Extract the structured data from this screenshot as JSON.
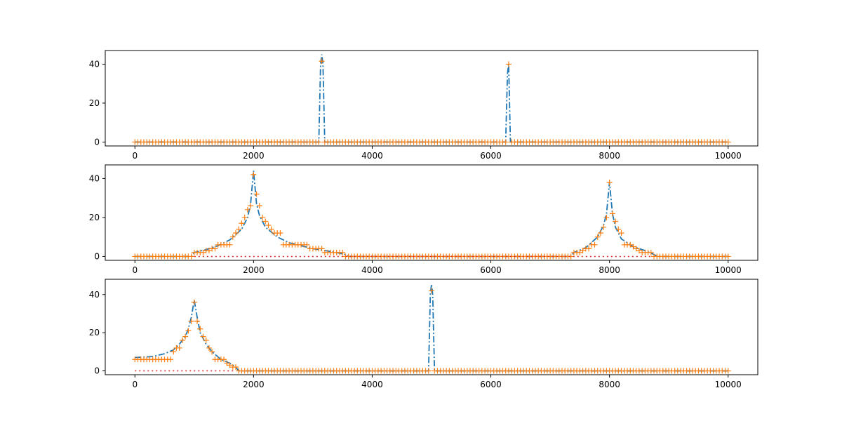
{
  "figure": {
    "background": "#ffffff"
  },
  "chart_data": [
    {
      "type": "line",
      "title": "",
      "xlabel": "",
      "ylabel": "",
      "xlim": [
        -500,
        10500
      ],
      "ylim": [
        -2,
        47
      ],
      "xticks": [
        0,
        2000,
        4000,
        6000,
        8000,
        10000
      ],
      "xtick_labels": [
        "0",
        "2000",
        "4000",
        "6000",
        "8000",
        "10000"
      ],
      "yticks": [
        0,
        20,
        40
      ],
      "ytick_labels": [
        "0",
        "20",
        "40"
      ],
      "grid": false,
      "series": [
        {
          "style": "dashdot",
          "color": "#1f77b4",
          "x": [
            0,
            3100,
            3130,
            3150,
            3170,
            3200,
            6250,
            6280,
            6300,
            6330,
            10000
          ],
          "y": [
            0,
            0,
            40,
            45,
            40,
            0,
            0,
            35,
            40,
            0,
            0
          ]
        },
        {
          "style": "markers-plus",
          "color": "#ff7f0e",
          "x_start": 0,
          "x_end": 10000,
          "x_step": 50,
          "default_y": 0,
          "overrides": [
            [
              3150,
              41.5
            ],
            [
              6300,
              40
            ]
          ]
        }
      ]
    },
    {
      "type": "line",
      "title": "",
      "xlabel": "",
      "ylabel": "",
      "xlim": [
        -500,
        10500
      ],
      "ylim": [
        -2,
        47
      ],
      "xticks": [
        0,
        2000,
        4000,
        6000,
        8000,
        10000
      ],
      "xtick_labels": [
        "0",
        "2000",
        "4000",
        "6000",
        "8000",
        "10000"
      ],
      "yticks": [
        0,
        20,
        40
      ],
      "ytick_labels": [
        "0",
        "20",
        "40"
      ],
      "grid": false,
      "series": [
        {
          "style": "dashdot",
          "color": "#1f77b4",
          "x": [
            0,
            950,
            1000,
            1200,
            1400,
            1600,
            1800,
            1900,
            1950,
            2000,
            2050,
            2100,
            2200,
            2400,
            2600,
            2800,
            3000,
            3200,
            3400,
            3550,
            3600,
            7350,
            7400,
            7600,
            7800,
            7900,
            7950,
            8000,
            8050,
            8100,
            8200,
            8400,
            8600,
            8750,
            8800,
            10000
          ],
          "y": [
            0,
            0,
            2,
            3.5,
            5.5,
            8.5,
            14,
            20,
            27,
            44,
            27,
            21,
            15,
            10,
            7,
            5.5,
            4,
            3,
            2,
            1,
            0,
            0,
            2,
            4.5,
            10,
            16,
            22,
            38,
            22,
            15,
            9,
            5,
            3,
            1,
            0,
            0
          ]
        },
        {
          "style": "markers-plus",
          "color": "#ff7f0e",
          "x_start": 0,
          "x_end": 10000,
          "x_step": 50,
          "default_y": 0,
          "overrides": [
            [
              1000,
              2
            ],
            [
              1050,
              2
            ],
            [
              1100,
              2
            ],
            [
              1150,
              2
            ],
            [
              1200,
              3
            ],
            [
              1250,
              3
            ],
            [
              1300,
              4
            ],
            [
              1350,
              4
            ],
            [
              1400,
              6
            ],
            [
              1450,
              6
            ],
            [
              1500,
              6
            ],
            [
              1550,
              6
            ],
            [
              1600,
              6
            ],
            [
              1650,
              10
            ],
            [
              1700,
              12
            ],
            [
              1750,
              14
            ],
            [
              1800,
              17
            ],
            [
              1850,
              20
            ],
            [
              1900,
              24
            ],
            [
              1950,
              26
            ],
            [
              2000,
              42
            ],
            [
              2050,
              32
            ],
            [
              2100,
              26
            ],
            [
              2150,
              20
            ],
            [
              2200,
              18
            ],
            [
              2250,
              16
            ],
            [
              2300,
              14
            ],
            [
              2350,
              12
            ],
            [
              2400,
              12
            ],
            [
              2450,
              12
            ],
            [
              2500,
              6
            ],
            [
              2550,
              6
            ],
            [
              2600,
              6
            ],
            [
              2650,
              6
            ],
            [
              2700,
              6
            ],
            [
              2750,
              6
            ],
            [
              2800,
              6
            ],
            [
              2850,
              6
            ],
            [
              2900,
              6
            ],
            [
              2950,
              4
            ],
            [
              3000,
              4
            ],
            [
              3050,
              4
            ],
            [
              3100,
              4
            ],
            [
              3150,
              4
            ],
            [
              3200,
              2
            ],
            [
              3250,
              2
            ],
            [
              3300,
              2
            ],
            [
              3350,
              2
            ],
            [
              3400,
              2
            ],
            [
              3450,
              2
            ],
            [
              3500,
              2
            ],
            [
              7400,
              2
            ],
            [
              7450,
              2
            ],
            [
              7500,
              2
            ],
            [
              7550,
              3
            ],
            [
              7600,
              4
            ],
            [
              7650,
              4
            ],
            [
              7700,
              6
            ],
            [
              7750,
              6
            ],
            [
              7800,
              10
            ],
            [
              7850,
              12
            ],
            [
              7900,
              15
            ],
            [
              7950,
              20
            ],
            [
              8000,
              38
            ],
            [
              8050,
              22
            ],
            [
              8100,
              18
            ],
            [
              8150,
              14
            ],
            [
              8200,
              12
            ],
            [
              8250,
              6
            ],
            [
              8300,
              6
            ],
            [
              8350,
              6
            ],
            [
              8400,
              5
            ],
            [
              8450,
              4
            ],
            [
              8500,
              3
            ],
            [
              8550,
              2
            ],
            [
              8600,
              2
            ],
            [
              8650,
              2
            ],
            [
              8700,
              2
            ]
          ]
        },
        {
          "style": "dotted",
          "color": "#d62728",
          "x": [
            1000,
            8700
          ],
          "y": [
            0,
            0
          ]
        }
      ]
    },
    {
      "type": "line",
      "title": "",
      "xlabel": "",
      "ylabel": "",
      "xlim": [
        -500,
        10500
      ],
      "ylim": [
        -2,
        48
      ],
      "xticks": [
        0,
        2000,
        4000,
        6000,
        8000,
        10000
      ],
      "xtick_labels": [
        "0",
        "2000",
        "4000",
        "6000",
        "8000",
        "10000"
      ],
      "yticks": [
        0,
        20,
        40
      ],
      "ytick_labels": [
        "0",
        "20",
        "40"
      ],
      "grid": false,
      "series": [
        {
          "style": "dashdot",
          "color": "#1f77b4",
          "x": [
            0,
            300,
            500,
            650,
            750,
            850,
            900,
            950,
            1000,
            1050,
            1100,
            1200,
            1300,
            1450,
            1600,
            1700,
            1750,
            4950,
            4980,
            5000,
            5020,
            5050,
            10000
          ],
          "y": [
            7,
            7.5,
            9,
            11,
            14,
            18,
            22,
            28,
            37,
            28,
            20,
            14,
            10,
            6,
            4,
            2,
            0,
            0,
            40,
            45.5,
            40,
            0,
            0
          ]
        },
        {
          "style": "markers-plus",
          "color": "#ff7f0e",
          "x_start": 0,
          "x_end": 10000,
          "x_step": 50,
          "default_y": 0,
          "overrides": [
            [
              0,
              6
            ],
            [
              50,
              6
            ],
            [
              100,
              6
            ],
            [
              150,
              6
            ],
            [
              200,
              6
            ],
            [
              250,
              6
            ],
            [
              300,
              6
            ],
            [
              350,
              6
            ],
            [
              400,
              6
            ],
            [
              450,
              6
            ],
            [
              500,
              6
            ],
            [
              550,
              6
            ],
            [
              600,
              6
            ],
            [
              650,
              10
            ],
            [
              700,
              12
            ],
            [
              750,
              12
            ],
            [
              800,
              16
            ],
            [
              850,
              18
            ],
            [
              900,
              21
            ],
            [
              950,
              26
            ],
            [
              1000,
              36
            ],
            [
              1050,
              26
            ],
            [
              1100,
              22
            ],
            [
              1150,
              18
            ],
            [
              1200,
              16
            ],
            [
              1250,
              12
            ],
            [
              1300,
              10
            ],
            [
              1350,
              6
            ],
            [
              1400,
              6
            ],
            [
              1450,
              6
            ],
            [
              1500,
              6
            ],
            [
              1550,
              4
            ],
            [
              1600,
              3
            ],
            [
              1650,
              2
            ],
            [
              1700,
              2
            ],
            [
              5000,
              42
            ]
          ]
        },
        {
          "style": "dotted",
          "color": "#d62728",
          "x": [
            0,
            1700
          ],
          "y": [
            0,
            0
          ]
        }
      ]
    }
  ]
}
